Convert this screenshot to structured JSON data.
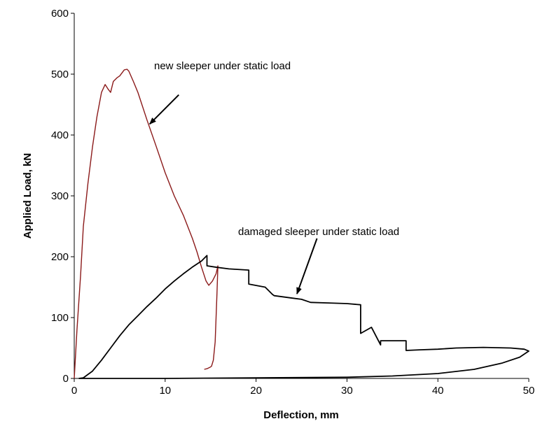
{
  "chart_data": {
    "type": "line",
    "title": "",
    "xlabel": "Deflection, mm",
    "ylabel": "Applied Load, kN",
    "xlim": [
      0,
      50
    ],
    "ylim": [
      0,
      600
    ],
    "xticks": [
      0,
      10,
      20,
      30,
      40,
      50
    ],
    "yticks": [
      0,
      100,
      200,
      300,
      400,
      500,
      600
    ],
    "grid": false,
    "legend": "none",
    "series": [
      {
        "key": "new",
        "color": "#8B1A1A",
        "x": [
          0,
          0.3,
          0.7,
          1.0,
          1.5,
          2.0,
          2.5,
          3.0,
          3.4,
          3.7,
          4.0,
          4.3,
          4.7,
          5.0,
          5.5,
          5.8,
          6.0,
          6.5,
          7.0,
          8.0,
          9.0,
          10.0,
          11.0,
          12.0,
          13.0,
          13.5,
          14.0,
          14.5,
          14.8,
          15.2,
          15.6,
          15.8,
          15.7,
          15.5,
          15.3,
          15.1,
          14.9,
          14.6,
          14.3
        ],
        "y": [
          0,
          80,
          170,
          250,
          320,
          380,
          430,
          470,
          483,
          476,
          470,
          488,
          494,
          497,
          507,
          508,
          505,
          488,
          470,
          425,
          382,
          338,
          300,
          268,
          230,
          208,
          183,
          160,
          153,
          160,
          172,
          185,
          140,
          60,
          30,
          20,
          18,
          16,
          15
        ]
      },
      {
        "key": "damaged",
        "color": "#000000",
        "x": [
          0.5,
          1,
          2,
          3,
          4,
          5,
          6,
          7,
          8,
          9,
          10,
          11,
          12,
          13,
          14,
          14.6,
          14.6,
          15.5,
          17,
          19.2,
          19.2,
          21,
          21.8,
          22,
          24,
          25,
          26,
          28,
          30,
          31.5,
          31.5,
          32.7,
          32.7,
          33.7,
          33.7,
          34.5,
          36.5,
          36.5,
          38,
          40,
          42,
          45,
          48,
          49.5,
          50,
          49,
          47,
          44,
          40,
          35,
          30,
          20,
          10,
          0.5
        ],
        "y": [
          0,
          1,
          12,
          30,
          50,
          70,
          88,
          103,
          118,
          132,
          147,
          160,
          172,
          183,
          193,
          202,
          185,
          183,
          180,
          178,
          155,
          150,
          138,
          136,
          132,
          130,
          125,
          124,
          123,
          121,
          74,
          84,
          84,
          55,
          62,
          62,
          62,
          46,
          47,
          48,
          50,
          51,
          50,
          48,
          45,
          35,
          25,
          15,
          8,
          4,
          2,
          1,
          0,
          0
        ]
      }
    ],
    "annotations": [
      {
        "text": "new sleeper under static load",
        "arrow_from": [
          11.5,
          466
        ],
        "arrow_to": [
          8.3,
          418
        ]
      },
      {
        "text": "damaged sleeper under static load",
        "arrow_from": [
          26.7,
          230
        ],
        "arrow_to": [
          24.5,
          139
        ]
      }
    ]
  }
}
